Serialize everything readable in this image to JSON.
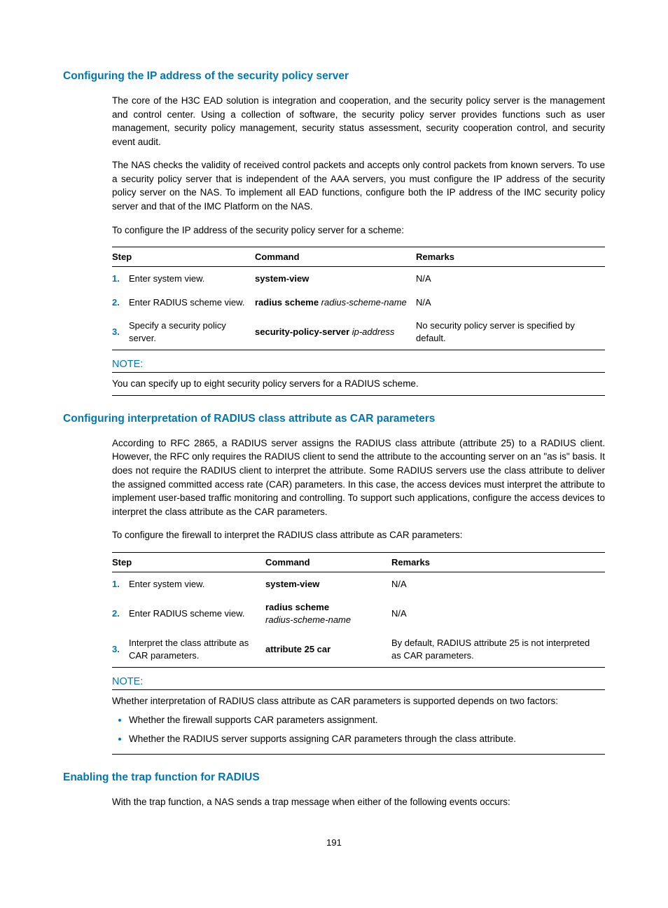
{
  "section1": {
    "heading": "Configuring the IP address of the security policy server",
    "para1": "The core of the H3C EAD solution is integration and cooperation, and the security policy server is the management and control center. Using a collection of software, the security policy server provides functions such as user management, security policy management, security status assessment, security cooperation control, and security event audit.",
    "para2": "The NAS checks the validity of received control packets and accepts only control packets from known servers. To use a security policy server that is independent of the AAA servers, you must configure the IP address of the security policy server on the NAS. To implement all EAD functions, configure both the IP address of the IMC security policy server and that of the IMC Platform on the NAS.",
    "para3": "To configure the IP address of the security policy server for a scheme:",
    "table": {
      "head": {
        "c1": "Step",
        "c2": "Command",
        "c3": "Remarks"
      },
      "rows": [
        {
          "num": "1.",
          "desc": "Enter system view.",
          "cmd_bold": "system-view",
          "cmd_ital": "",
          "rem": "N/A"
        },
        {
          "num": "2.",
          "desc": "Enter RADIUS scheme view.",
          "cmd_bold": "radius scheme",
          "cmd_ital": " radius-scheme-name",
          "rem": "N/A"
        },
        {
          "num": "3.",
          "desc": "Specify a security policy server.",
          "cmd_bold": "security-policy-server",
          "cmd_ital": " ip-address",
          "rem": "No security policy server is specified by default."
        }
      ]
    },
    "note": {
      "title": "NOTE:",
      "body": "You can specify up to eight security policy servers for a RADIUS scheme."
    }
  },
  "section2": {
    "heading": "Configuring interpretation of RADIUS class attribute as CAR parameters",
    "para1": "According to RFC 2865, a RADIUS server assigns the RADIUS class attribute (attribute 25) to a RADIUS client. However, the RFC only requires the RADIUS client to send the attribute to the accounting server on an \"as is\" basis. It does not require the RADIUS client to interpret the attribute. Some RADIUS servers use the class attribute to deliver the assigned committed access rate (CAR) parameters. In this case, the access devices must interpret the attribute to implement user-based traffic monitoring and controlling. To support such applications, configure the access devices to interpret the class attribute as the CAR parameters.",
    "para2": "To configure the firewall to interpret the RADIUS class attribute as CAR parameters:",
    "table": {
      "head": {
        "c1": "Step",
        "c2": "Command",
        "c3": "Remarks"
      },
      "rows": [
        {
          "num": "1.",
          "desc": "Enter system view.",
          "cmd_bold": "system-view",
          "cmd_ital": "",
          "rem": "N/A"
        },
        {
          "num": "2.",
          "desc": "Enter RADIUS scheme view.",
          "cmd_bold": "radius scheme",
          "cmd_ital": "radius-scheme-name",
          "cmd_break": true,
          "rem": "N/A"
        },
        {
          "num": "3.",
          "desc": "Interpret the class attribute as CAR parameters.",
          "cmd_bold": "attribute 25 car",
          "cmd_ital": "",
          "rem": "By default, RADIUS attribute 25 is not interpreted as CAR parameters."
        }
      ]
    },
    "note": {
      "title": "NOTE:",
      "intro": "Whether interpretation of RADIUS class attribute as CAR parameters is supported depends on two factors:",
      "bullets": [
        "Whether the firewall supports CAR parameters assignment.",
        "Whether the RADIUS server supports assigning CAR parameters through the class attribute."
      ]
    }
  },
  "section3": {
    "heading": "Enabling the trap function for RADIUS",
    "para1": "With the trap function, a NAS sends a trap message when either of the following events occurs:"
  },
  "page_number": "191"
}
